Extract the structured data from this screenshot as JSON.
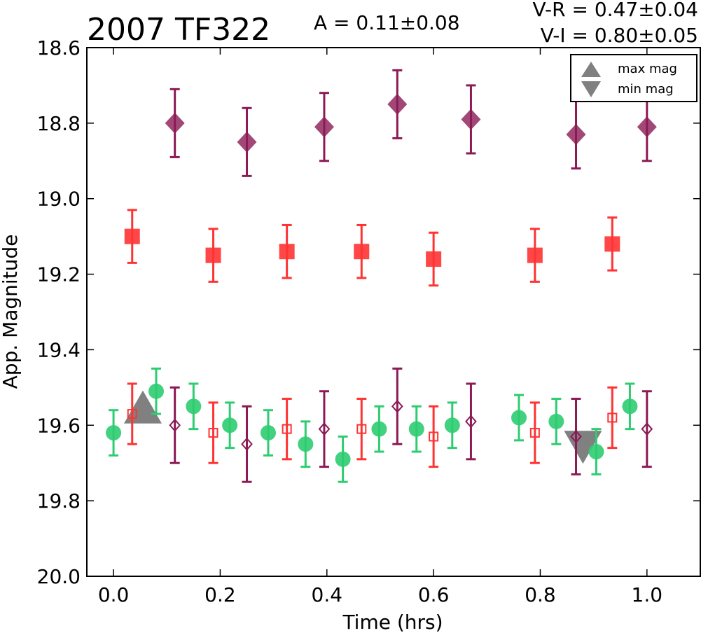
{
  "chart_data": {
    "type": "scatter",
    "title": "2007 TF322",
    "annotations": {
      "amplitude": "A  = 0.11±0.08",
      "v_r": "V-R = 0.47±0.04",
      "v_i": "V-I  = 0.80±0.05"
    },
    "xlabel": "Time (hrs)",
    "ylabel": "App. Magnitude",
    "xlim": [
      -0.05,
      1.1
    ],
    "ylim": [
      20.0,
      18.6
    ],
    "y_inverted": true,
    "x_ticks": [
      "0.0",
      "0.2",
      "0.4",
      "0.6",
      "0.8",
      "1.0"
    ],
    "y_ticks": [
      "18.6",
      "18.8",
      "19.0",
      "19.2",
      "19.4",
      "19.6",
      "19.8",
      "20.0"
    ],
    "grid": false,
    "legend": {
      "placement": "top-right",
      "entries": [
        "max mag",
        "min mag"
      ]
    },
    "colors": {
      "green": "#2ecc71",
      "red": "#ff3333",
      "purple": "#8b1a55",
      "marker_gray": "#808080"
    },
    "series": [
      {
        "marker": "filled-diamond",
        "color": "purple",
        "x": [
          0.115,
          0.25,
          0.395,
          0.532,
          0.67,
          0.867,
          1.0
        ],
        "y": [
          18.8,
          18.85,
          18.81,
          18.75,
          18.79,
          18.83,
          18.81
        ],
        "err": [
          0.09,
          0.09,
          0.09,
          0.09,
          0.09,
          0.09,
          0.09
        ]
      },
      {
        "marker": "filled-square",
        "color": "red",
        "x": [
          0.035,
          0.187,
          0.325,
          0.465,
          0.6,
          0.79,
          0.935
        ],
        "y": [
          19.1,
          19.15,
          19.14,
          19.14,
          19.16,
          19.15,
          19.12
        ],
        "err": [
          0.07,
          0.07,
          0.07,
          0.07,
          0.07,
          0.07,
          0.07
        ]
      },
      {
        "marker": "filled-circle",
        "color": "green",
        "x": [
          0.0,
          0.08,
          0.15,
          0.218,
          0.29,
          0.36,
          0.43,
          0.498,
          0.568,
          0.635,
          0.76,
          0.83,
          0.905,
          0.968
        ],
        "y": [
          19.62,
          19.51,
          19.55,
          19.6,
          19.62,
          19.65,
          19.69,
          19.61,
          19.61,
          19.6,
          19.58,
          19.59,
          19.67,
          19.55
        ],
        "err": [
          0.06,
          0.06,
          0.06,
          0.06,
          0.06,
          0.06,
          0.06,
          0.06,
          0.06,
          0.06,
          0.06,
          0.06,
          0.06,
          0.06
        ]
      },
      {
        "marker": "open-square",
        "color": "red",
        "x": [
          0.035,
          0.187,
          0.325,
          0.465,
          0.6,
          0.79,
          0.935
        ],
        "y": [
          19.57,
          19.62,
          19.61,
          19.61,
          19.63,
          19.62,
          19.58
        ],
        "err": [
          0.08,
          0.08,
          0.08,
          0.08,
          0.08,
          0.08,
          0.08
        ]
      },
      {
        "marker": "open-diamond",
        "color": "purple",
        "x": [
          0.115,
          0.25,
          0.395,
          0.532,
          0.67,
          0.867,
          1.0
        ],
        "y": [
          19.6,
          19.65,
          19.61,
          19.55,
          19.59,
          19.63,
          19.61
        ],
        "err": [
          0.1,
          0.1,
          0.1,
          0.1,
          0.1,
          0.1,
          0.1
        ]
      }
    ],
    "extrema": {
      "max_mag": {
        "x": 0.055,
        "y": 19.56
      },
      "min_mag": {
        "x": 0.88,
        "y": 19.65
      }
    }
  }
}
